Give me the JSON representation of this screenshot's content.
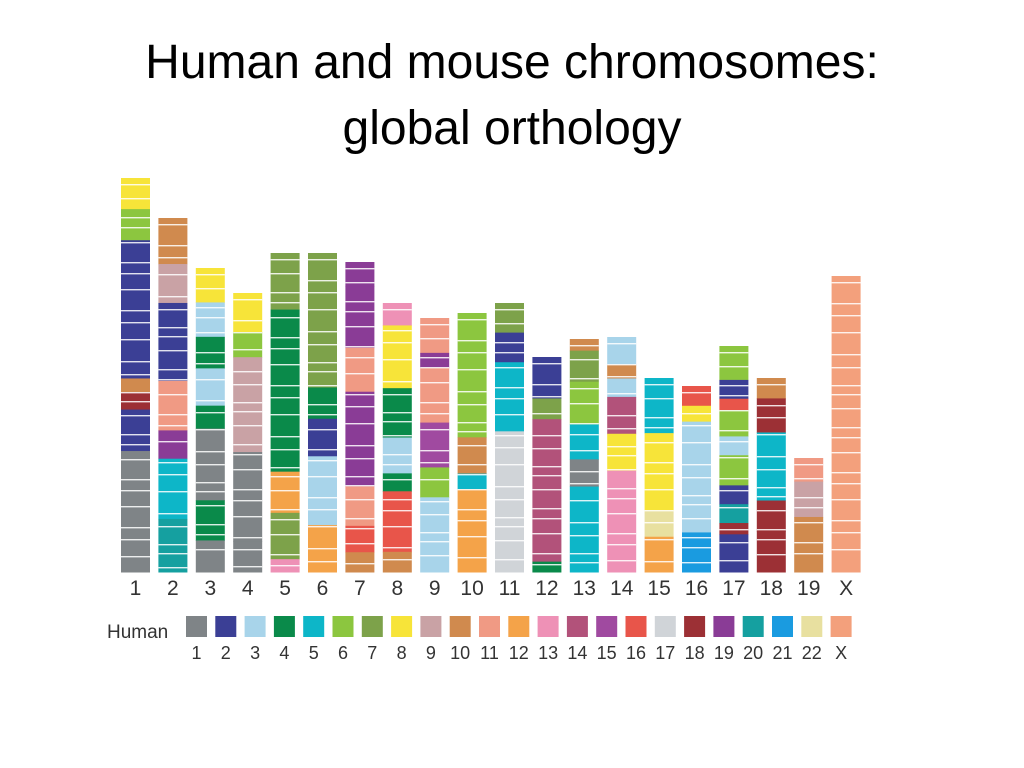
{
  "slide": {
    "title_line1": "Human and mouse chromosomes:",
    "title_line2": "global orthology"
  },
  "legend": {
    "title": "Human",
    "items": [
      {
        "label": "1",
        "color": "#7f8487"
      },
      {
        "label": "2",
        "color": "#3b3f95"
      },
      {
        "label": "3",
        "color": "#a8d4ea"
      },
      {
        "label": "4",
        "color": "#0a8a4a"
      },
      {
        "label": "5",
        "color": "#0db6c8"
      },
      {
        "label": "6",
        "color": "#8cc63f"
      },
      {
        "label": "7",
        "color": "#7da24a"
      },
      {
        "label": "8",
        "color": "#f7e439"
      },
      {
        "label": "9",
        "color": "#c9a2a5"
      },
      {
        "label": "10",
        "color": "#d08a4e"
      },
      {
        "label": "11",
        "color": "#f09a84"
      },
      {
        "label": "12",
        "color": "#f4a349"
      },
      {
        "label": "13",
        "color": "#ee91b6"
      },
      {
        "label": "14",
        "color": "#b2527a"
      },
      {
        "label": "15",
        "color": "#a04aa0"
      },
      {
        "label": "16",
        "color": "#e8554a"
      },
      {
        "label": "17",
        "color": "#d0d4d8"
      },
      {
        "label": "18",
        "color": "#9c3035"
      },
      {
        "label": "19",
        "color": "#8a3c96"
      },
      {
        "label": "20",
        "color": "#15a0a0"
      },
      {
        "label": "21",
        "color": "#1a9be0"
      },
      {
        "label": "22",
        "color": "#e8e0a0"
      },
      {
        "label": "X",
        "color": "#f3a07c"
      }
    ]
  },
  "chromosomes": [
    {
      "label": "1",
      "blocks": [
        [
          "8",
          9
        ],
        [
          "6",
          9
        ],
        [
          "2",
          40
        ],
        [
          "10",
          4
        ],
        [
          "18",
          5
        ],
        [
          "2",
          12
        ],
        [
          "1",
          35
        ]
      ]
    },
    {
      "label": "2",
      "blocks": [
        [
          "10",
          7
        ],
        [
          "10",
          6
        ],
        [
          "9",
          11
        ],
        [
          "2",
          22
        ],
        [
          "11",
          14
        ],
        [
          "19",
          8
        ],
        [
          "5",
          17
        ],
        [
          "20",
          15
        ]
      ]
    },
    {
      "label": "3",
      "blocks": [
        [
          "8",
          12
        ],
        [
          "3",
          12
        ],
        [
          "4",
          11
        ],
        [
          "3",
          13
        ],
        [
          "4",
          8
        ],
        [
          "1",
          25
        ],
        [
          "4",
          14
        ],
        [
          "1",
          11
        ]
      ]
    },
    {
      "label": "4",
      "blocks": [
        [
          "8",
          14
        ],
        [
          "6",
          9
        ],
        [
          "9",
          34
        ],
        [
          "1",
          32
        ],
        [
          "1",
          11
        ]
      ]
    },
    {
      "label": "5",
      "blocks": [
        [
          "7",
          22
        ],
        [
          "4",
          63
        ],
        [
          "12",
          16
        ],
        [
          "7",
          18
        ],
        [
          "13",
          5
        ]
      ]
    },
    {
      "label": "6",
      "blocks": [
        [
          "7",
          43
        ],
        [
          "4",
          10
        ],
        [
          "2",
          12
        ],
        [
          "3",
          22
        ],
        [
          "12",
          15
        ]
      ]
    },
    {
      "label": "7",
      "blocks": [
        [
          "19",
          11
        ],
        [
          "19",
          28
        ],
        [
          "11",
          20
        ],
        [
          "19",
          43
        ],
        [
          "11",
          18
        ],
        [
          "16",
          12
        ],
        [
          "10",
          9
        ]
      ]
    },
    {
      "label": "8",
      "blocks": [
        [
          "13",
          10
        ],
        [
          "8",
          28
        ],
        [
          "4",
          22
        ],
        [
          "3",
          16
        ],
        [
          "4",
          8
        ],
        [
          "16",
          27
        ],
        [
          "10",
          9
        ]
      ]
    },
    {
      "label": "9",
      "blocks": [
        [
          "11",
          14
        ],
        [
          "19",
          6
        ],
        [
          "11",
          22
        ],
        [
          "15",
          18
        ],
        [
          "6",
          12
        ],
        [
          "3",
          30
        ]
      ]
    },
    {
      "label": "10",
      "blocks": [
        [
          "6",
          48
        ],
        [
          "10",
          14
        ],
        [
          "5",
          6
        ],
        [
          "12",
          32
        ]
      ]
    },
    {
      "label": "11",
      "blocks": [
        [
          "7",
          12
        ],
        [
          "2",
          12
        ],
        [
          "5",
          28
        ],
        [
          "17",
          57
        ]
      ]
    },
    {
      "label": "12",
      "blocks": [
        [
          "2",
          16
        ],
        [
          "7",
          8
        ],
        [
          "14",
          55
        ],
        [
          "4",
          4
        ]
      ]
    },
    {
      "label": "13",
      "blocks": [
        [
          "10",
          6
        ],
        [
          "7",
          16
        ],
        [
          "6",
          22
        ],
        [
          "5",
          18
        ],
        [
          "1",
          14
        ],
        [
          "5",
          44
        ]
      ]
    },
    {
      "label": "14",
      "blocks": [
        [
          "3",
          12
        ],
        [
          "10",
          6
        ],
        [
          "3",
          8
        ],
        [
          "14",
          16
        ],
        [
          "8",
          16
        ],
        [
          "13",
          44
        ]
      ]
    },
    {
      "label": "15",
      "blocks": [
        [
          "5",
          25
        ],
        [
          "8",
          35
        ],
        [
          "22",
          12
        ],
        [
          "12",
          16
        ]
      ]
    },
    {
      "label": "16",
      "blocks": [
        [
          "16",
          10
        ],
        [
          "8",
          8
        ],
        [
          "3",
          56
        ],
        [
          "21",
          20
        ]
      ]
    },
    {
      "label": "17",
      "blocks": [
        [
          "6",
          18
        ],
        [
          "2",
          10
        ],
        [
          "16",
          6
        ],
        [
          "6",
          14
        ],
        [
          "3",
          10
        ],
        [
          "6",
          16
        ],
        [
          "2",
          10
        ],
        [
          "20",
          10
        ],
        [
          "18",
          6
        ],
        [
          "2",
          20
        ]
      ]
    },
    {
      "label": "18",
      "blocks": [
        [
          "10",
          12
        ],
        [
          "18",
          20
        ],
        [
          "5",
          40
        ],
        [
          "18",
          18
        ],
        [
          "18",
          24
        ]
      ]
    },
    {
      "label": "19",
      "blocks": [
        [
          "11",
          12
        ],
        [
          "9",
          18
        ],
        [
          "10",
          28
        ]
      ]
    },
    {
      "label": "X",
      "blocks": [
        [
          "X",
          100
        ]
      ]
    }
  ]
}
